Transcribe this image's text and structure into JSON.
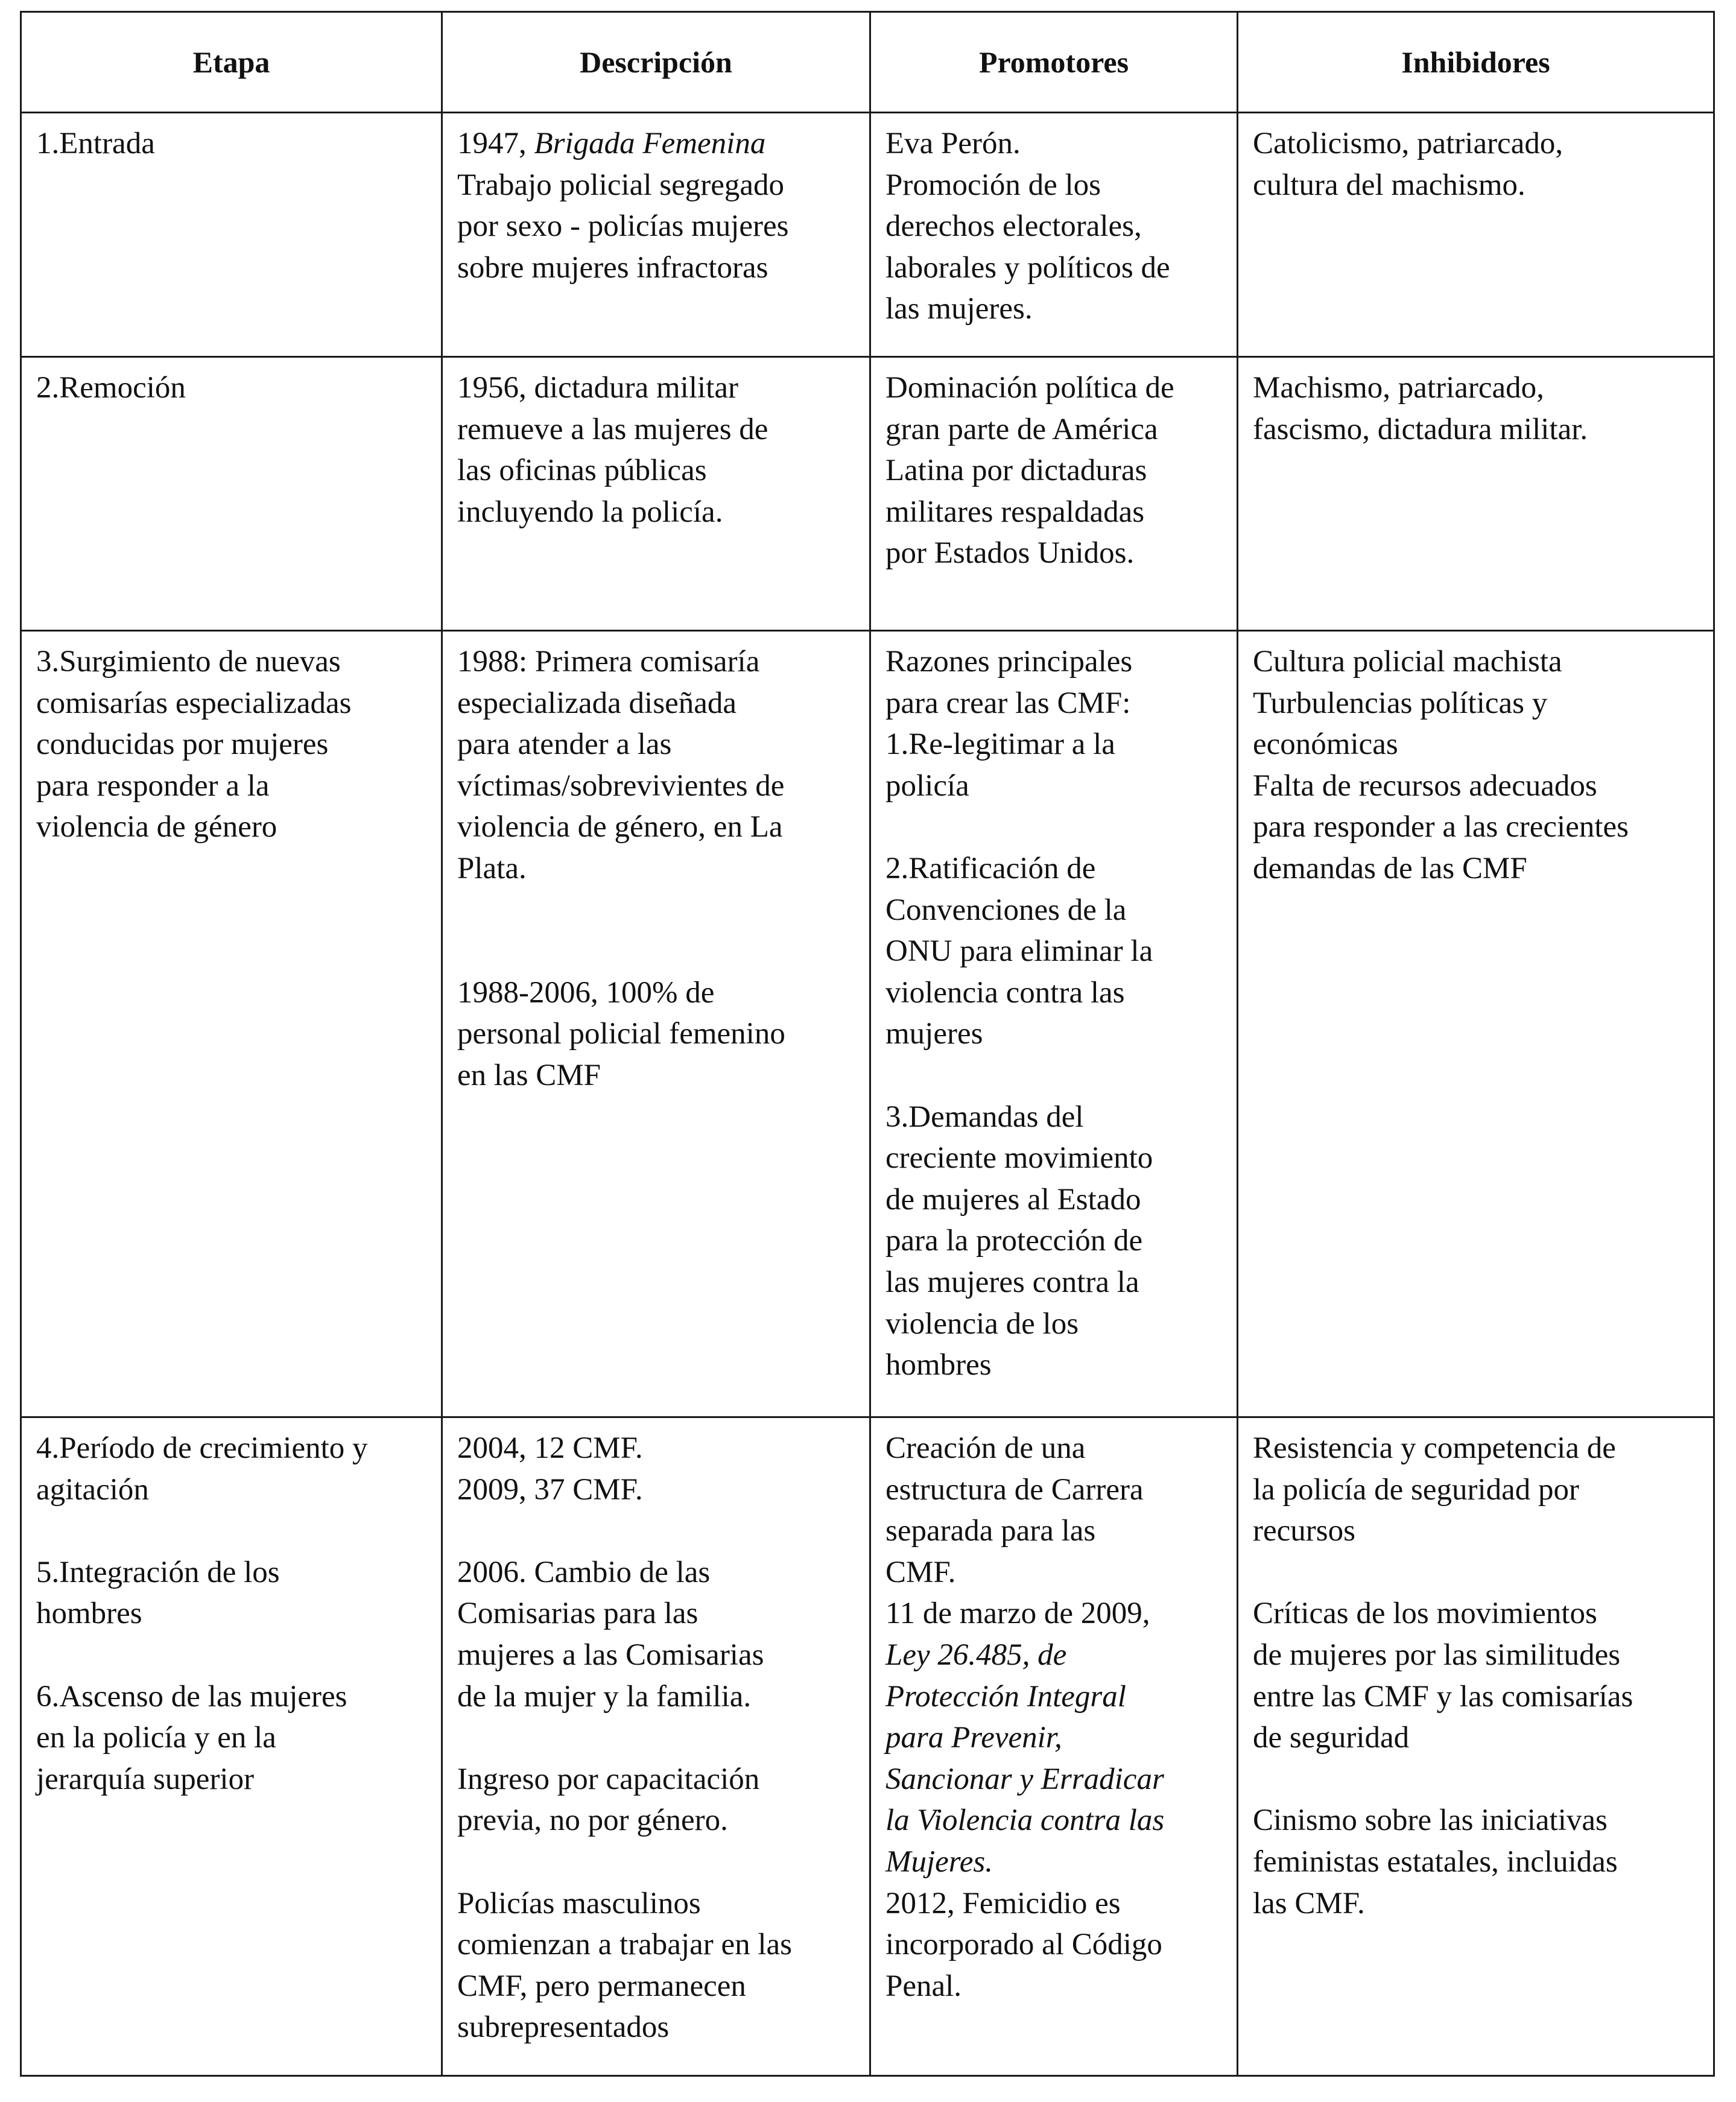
{
  "headers": [
    "Etapa",
    "Descripción",
    "Promotores",
    "Inhibidores"
  ],
  "rows": [
    {
      "etapa": [
        {
          "text": "1.Entrada"
        }
      ],
      "descripcion": [
        {
          "text": "1947, "
        },
        {
          "text": "Brigada Femenina",
          "italic": true
        },
        {
          "text": "\nTrabajo policial segregado\npor sexo - policías mujeres\nsobre mujeres infractoras"
        }
      ],
      "promotores": [
        {
          "text": "Eva Perón.\nPromoción de los\nderechos electorales,\nlaborales y políticos de\nlas mujeres."
        }
      ],
      "inhibidores": [
        {
          "text": "Catolicismo, patriarcado,\ncultura del machismo."
        }
      ]
    },
    {
      "etapa": [
        {
          "text": "2.Remoción"
        }
      ],
      "descripcion": [
        {
          "text": "1956, dictadura militar\nremueve a las mujeres de\nlas oficinas públicas\nincluyendo la policía."
        }
      ],
      "promotores": [
        {
          "text": "Dominación política de\ngran parte de América\nLatina por dictaduras\nmilitares respaldadas\npor Estados Unidos."
        }
      ],
      "inhibidores": [
        {
          "text": "Machismo, patriarcado,\nfascismo, dictadura militar."
        }
      ]
    },
    {
      "etapa": [
        {
          "text": "3.Surgimiento de nuevas\ncomisarías especializadas\nconducidas por mujeres\npara responder a la\nviolencia de género"
        }
      ],
      "descripcion": [
        {
          "text": "1988: Primera comisaría\nespecializada diseñada\npara atender a las\nvíctimas/sobrevivientes de\nviolencia de género, en La\nPlata.\n\n\n1988-2006, 100% de\npersonal policial femenino\nen las CMF"
        }
      ],
      "promotores": [
        {
          "text": "Razones principales\npara crear las CMF:\n1.Re-legitimar a la\npolicía\n\n2.Ratificación de\nConvenciones de la\nONU para eliminar la\nviolencia contra las\nmujeres\n\n3.Demandas del\ncreciente movimiento\nde mujeres al Estado\npara la protección de\nlas mujeres contra la\nviolencia de los\nhombres"
        }
      ],
      "inhibidores": [
        {
          "text": "Cultura policial machista\nTurbulencias políticas y\neconómicas\nFalta de recursos adecuados\npara responder a las crecientes\ndemandas de las CMF"
        }
      ]
    },
    {
      "etapa": [
        {
          "text": "4.Período de crecimiento y\nagitación\n\n5.Integración de los\nhombres\n\n6.Ascenso de las mujeres\nen la policía y en la\njerarquía superior"
        }
      ],
      "descripcion": [
        {
          "text": "2004, 12 CMF.\n2009, 37 CMF.\n\n2006.  Cambio de las\nComisarias para las\nmujeres a las Comisarias\nde la mujer y la familia.\n\nIngreso por capacitación\nprevia, no por género.\n\nPolicías masculinos\ncomienzan a trabajar en las\nCMF, pero permanecen\nsubrepresentados"
        }
      ],
      "promotores": [
        {
          "text": "Creación de una\nestructura de Carrera\nseparada para las\nCMF.\n11 de marzo de 2009,\n"
        },
        {
          "text": "Ley 26.485, de\nProtección Integral\npara Prevenir,\nSancionar y Erradicar\nla Violencia contra las\nMujeres.",
          "italic": true
        },
        {
          "text": "\n2012, Femicidio es\nincorporado al Código\nPenal."
        }
      ],
      "inhibidores": [
        {
          "text": "Resistencia y competencia de\nla policía de seguridad por\nrecursos\n\nCríticas de los movimientos\nde mujeres por las similitudes\nentre las CMF y las comisarías\nde seguridad\n\nCinismo sobre las iniciativas\nfeministas estatales, incluidas\nlas CMF."
        }
      ]
    }
  ]
}
